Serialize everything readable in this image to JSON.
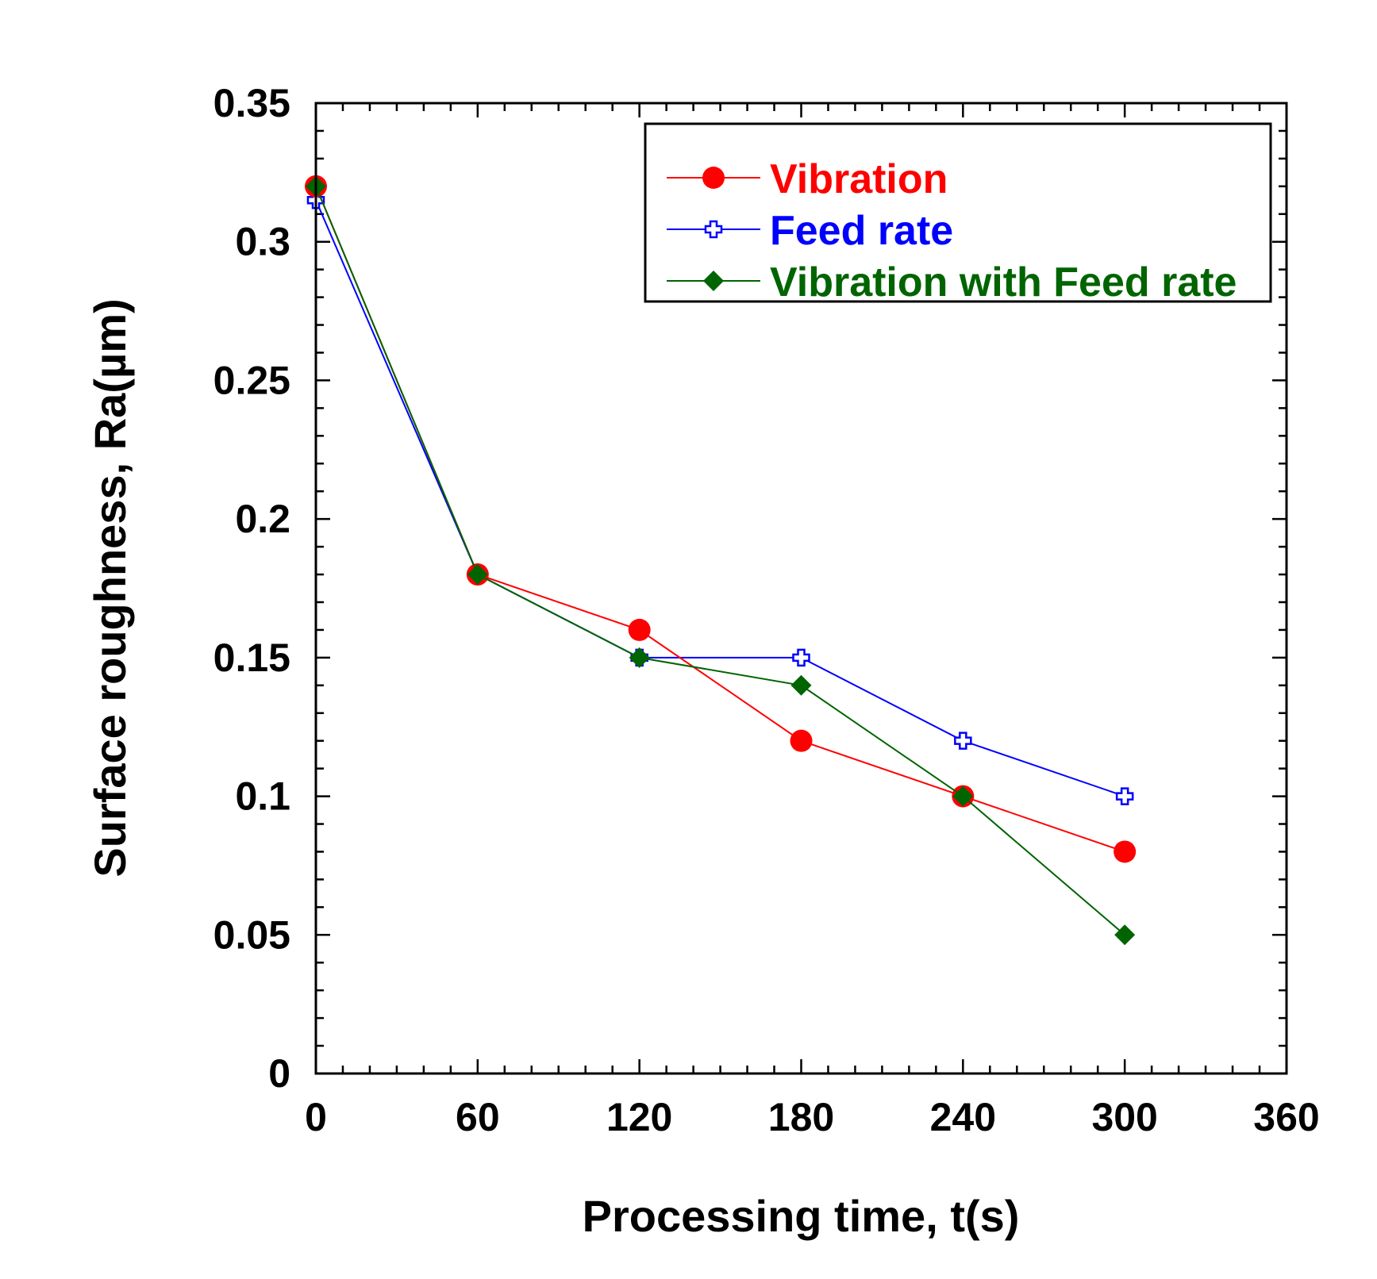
{
  "chart_data": {
    "type": "line",
    "title": "",
    "xlabel": "Processing time, t(s)",
    "ylabel": "Surface roughness, Ra(µm)",
    "xlim": [
      0,
      360
    ],
    "ylim": [
      0,
      0.35
    ],
    "xticks": [
      0,
      60,
      120,
      180,
      240,
      300,
      360
    ],
    "xtick_labels": [
      "0",
      "60",
      "120",
      "180",
      "240",
      "300",
      "360"
    ],
    "yticks": [
      0,
      0.05,
      0.1,
      0.15,
      0.2,
      0.25,
      0.3,
      0.35
    ],
    "ytick_labels": [
      "0",
      "0.05",
      "0.1",
      "0.15",
      "0.2",
      "0.25",
      "0.3",
      "0.35"
    ],
    "x_minor_step": 10,
    "y_minor_step": 0.01,
    "grid": false,
    "legend_position": "top-right",
    "x": [
      0,
      60,
      120,
      180,
      240,
      300
    ],
    "series": [
      {
        "name": "Vibration",
        "color": "#ff0000",
        "marker": "circle",
        "values": [
          0.32,
          0.18,
          0.16,
          0.12,
          0.1,
          0.08
        ]
      },
      {
        "name": "Feed rate",
        "color": "#0000ff",
        "marker": "open-cross",
        "values": [
          0.315,
          0.18,
          0.15,
          0.15,
          0.12,
          0.1
        ]
      },
      {
        "name": "Vibration with Feed rate",
        "color": "#006400",
        "marker": "diamond",
        "values": [
          0.32,
          0.18,
          0.15,
          0.14,
          0.1,
          0.05
        ]
      }
    ]
  }
}
